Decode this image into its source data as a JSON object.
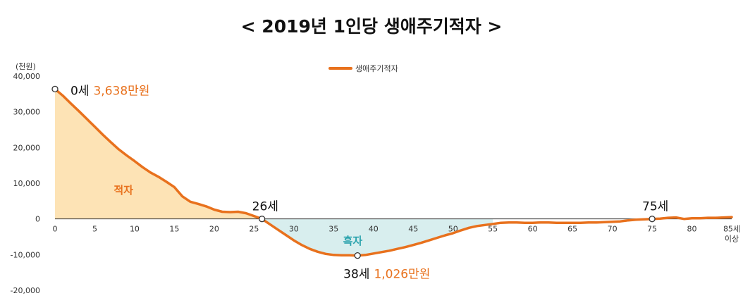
{
  "chart_data": {
    "type": "area",
    "title": "< 2019년 1인당 생애주기적자 >",
    "y_unit_label": "(천원)",
    "ylim": [
      -20000,
      40000
    ],
    "y_ticks": [
      40000,
      30000,
      20000,
      10000,
      0,
      -10000,
      -20000
    ],
    "y_tick_labels": [
      "40,000",
      "30,000",
      "20,000",
      "10,000",
      "0",
      "-10,000",
      "-20,000"
    ],
    "xlim": [
      0,
      85
    ],
    "x_ticks": [
      0,
      5,
      10,
      15,
      20,
      25,
      30,
      35,
      40,
      45,
      50,
      55,
      60,
      65,
      70,
      75,
      80,
      85
    ],
    "x_tick_labels": [
      "0",
      "5",
      "10",
      "15",
      "20",
      "25",
      "30",
      "35",
      "40",
      "45",
      "50",
      "55",
      "60",
      "65",
      "70",
      "75",
      "80",
      "85세"
    ],
    "x_last_label_sub": "이상",
    "legend": {
      "position": "top-center",
      "label": "생애주기적자"
    },
    "series": [
      {
        "name": "생애주기적자",
        "color": "#e8711d",
        "x": [
          0,
          1,
          2,
          3,
          4,
          5,
          6,
          7,
          8,
          9,
          10,
          11,
          12,
          13,
          14,
          15,
          16,
          17,
          18,
          19,
          20,
          21,
          22,
          23,
          24,
          25,
          26,
          27,
          28,
          29,
          30,
          31,
          32,
          33,
          34,
          35,
          36,
          37,
          38,
          39,
          40,
          41,
          42,
          43,
          44,
          45,
          46,
          47,
          48,
          49,
          50,
          51,
          52,
          53,
          54,
          55,
          56,
          57,
          58,
          59,
          60,
          61,
          62,
          63,
          64,
          65,
          66,
          67,
          68,
          69,
          70,
          71,
          72,
          73,
          74,
          75,
          76,
          77,
          78,
          79,
          80,
          81,
          82,
          83,
          84,
          85
        ],
        "y": [
          36380,
          34500,
          32300,
          30200,
          28000,
          25800,
          23600,
          21500,
          19500,
          17800,
          16200,
          14500,
          13000,
          11800,
          10400,
          8900,
          6300,
          4800,
          4200,
          3500,
          2600,
          2000,
          1900,
          2000,
          1600,
          800,
          0,
          -1500,
          -3000,
          -4500,
          -6000,
          -7300,
          -8400,
          -9200,
          -9800,
          -10100,
          -10200,
          -10200,
          -10260,
          -10100,
          -9700,
          -9300,
          -8900,
          -8400,
          -7900,
          -7300,
          -6700,
          -6000,
          -5300,
          -4600,
          -4000,
          -3200,
          -2500,
          -2000,
          -1700,
          -1400,
          -1100,
          -1000,
          -1000,
          -1100,
          -1100,
          -1000,
          -1000,
          -1100,
          -1100,
          -1100,
          -1100,
          -1000,
          -1000,
          -900,
          -800,
          -700,
          -400,
          -200,
          -100,
          0,
          100,
          300,
          400,
          0,
          200,
          200,
          300,
          300,
          400,
          500
        ]
      }
    ],
    "fills": [
      {
        "label": "적자",
        "range": [
          0,
          26
        ],
        "color": "#fde3b5",
        "text_color": "#e8711d"
      },
      {
        "label": "흑자",
        "range": [
          26,
          55
        ],
        "color": "#d8eeee",
        "text_color": "#2aa3ad"
      }
    ],
    "annotations": [
      {
        "x": 0,
        "y": 36380,
        "age_label": "0세",
        "value_label": "3,638만원"
      },
      {
        "x": 26,
        "y": 0,
        "age_label": "26세",
        "value_label": ""
      },
      {
        "x": 38,
        "y": -10260,
        "age_label": "38세",
        "value_label": "1,026만원"
      },
      {
        "x": 75,
        "y": 0,
        "age_label": "75세",
        "value_label": ""
      }
    ]
  }
}
